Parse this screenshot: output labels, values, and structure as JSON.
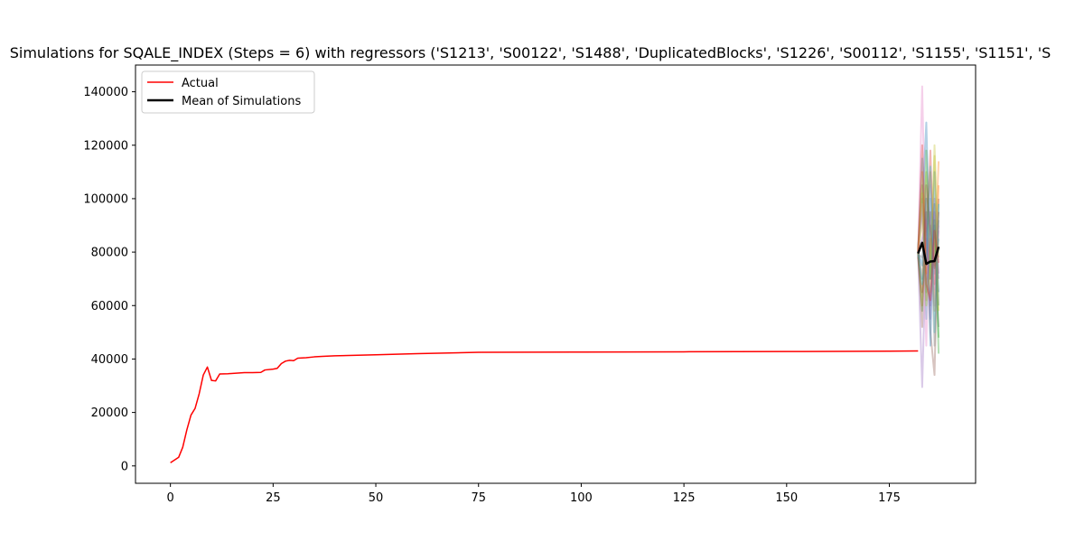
{
  "chart_data": {
    "type": "line",
    "title": "Simulations for SQALE_INDEX (Steps = 6) with regressors ('S1213', 'S00122', 'S1488', 'DuplicatedBlocks', 'S1226', 'S00112', 'S1155', 'S1151', 'S",
    "xlabel": "",
    "ylabel": "",
    "xlim": [
      -8.5,
      196
    ],
    "ylim": [
      -6500,
      150000
    ],
    "x_ticks": [
      0,
      25,
      50,
      75,
      100,
      125,
      150,
      175
    ],
    "y_ticks": [
      0,
      20000,
      40000,
      60000,
      80000,
      100000,
      120000,
      140000
    ],
    "grid": false,
    "legend": {
      "placement": "upper-left",
      "entries": [
        {
          "label": "Actual",
          "color": "#ff0000"
        },
        {
          "label": "Mean of Simulations",
          "color": "#000000"
        }
      ]
    },
    "actual": {
      "name": "Actual",
      "color": "#ff0000",
      "x": [
        0,
        1,
        2,
        3,
        4,
        5,
        6,
        7,
        8,
        9,
        10,
        11,
        12,
        14,
        16,
        18,
        20,
        22,
        23,
        25,
        26,
        27,
        28,
        29,
        30,
        31,
        33,
        35,
        37,
        40,
        50,
        60,
        75,
        100,
        125,
        150,
        175,
        182
      ],
      "y": [
        1200,
        2200,
        3200,
        7000,
        13500,
        19000,
        21500,
        27000,
        34000,
        37000,
        32000,
        31800,
        34400,
        34500,
        34700,
        34900,
        34900,
        35000,
        35900,
        36200,
        36500,
        38300,
        39200,
        39500,
        39400,
        40300,
        40500,
        40800,
        41000,
        41200,
        41600,
        42000,
        42500,
        42600,
        42700,
        42800,
        42950,
        43000
      ]
    },
    "mean_of_simulations": {
      "name": "Mean of Simulations",
      "color": "#000000",
      "x": [
        182,
        183,
        184,
        185,
        186,
        187
      ],
      "y": [
        79500,
        83500,
        75600,
        76500,
        76600,
        82000
      ]
    },
    "simulations": [
      {
        "color": "#e377c2",
        "values": [
          80000,
          142000,
          70000,
          95000,
          60000,
          88000
        ]
      },
      {
        "color": "#1f77b4",
        "values": [
          82000,
          95000,
          128500,
          70000,
          90000,
          65000
        ]
      },
      {
        "color": "#ff7f0e",
        "values": [
          78000,
          60000,
          90000,
          110000,
          75000,
          114000
        ]
      },
      {
        "color": "#2ca02c",
        "values": [
          81000,
          105000,
          65000,
          80000,
          98000,
          42000
        ]
      },
      {
        "color": "#9467bd",
        "values": [
          79000,
          29500,
          85000,
          60000,
          95000,
          70000
        ]
      },
      {
        "color": "#8c564b",
        "values": [
          80500,
          70000,
          95000,
          50000,
          34000,
          100000
        ]
      },
      {
        "color": "#17becf",
        "values": [
          79500,
          115000,
          55000,
          100000,
          72000,
          85000
        ]
      },
      {
        "color": "#bcbd22",
        "values": [
          80000,
          90000,
          110000,
          65000,
          120000,
          78000
        ]
      },
      {
        "color": "#d62728",
        "values": [
          78500,
          65000,
          80000,
          118000,
          68000,
          95000
        ]
      },
      {
        "color": "#7f7f7f",
        "values": [
          81500,
          100000,
          62000,
          90000,
          82000,
          52000
        ]
      },
      {
        "color": "#1f77b4",
        "values": [
          80000,
          75000,
          100000,
          45000,
          110000,
          60000
        ]
      },
      {
        "color": "#ff7f0e",
        "values": [
          79000,
          110000,
          72000,
          85000,
          58000,
          105000
        ]
      },
      {
        "color": "#2ca02c",
        "values": [
          80200,
          58000,
          118000,
          70000,
          92000,
          48000
        ]
      },
      {
        "color": "#e377c2",
        "values": [
          79800,
          98000,
          45000,
          105000,
          66000,
          90000
        ]
      },
      {
        "color": "#9467bd",
        "values": [
          80600,
          85000,
          92000,
          55000,
          100000,
          72000
        ]
      },
      {
        "color": "#17becf",
        "values": [
          79200,
          68000,
          78000,
          112000,
          50000,
          98000
        ]
      },
      {
        "color": "#bcbd22",
        "values": [
          80400,
          102000,
          60000,
          76000,
          116000,
          58000
        ]
      },
      {
        "color": "#8c564b",
        "values": [
          79600,
          52000,
          105000,
          88000,
          74000,
          82000
        ]
      },
      {
        "color": "#d62728",
        "values": [
          80100,
          120000,
          68000,
          62000,
          88000,
          76000
        ]
      },
      {
        "color": "#7f7f7f",
        "values": [
          79300,
          78000,
          88000,
          95000,
          45000,
          92000
        ]
      }
    ],
    "simulation_x": [
      182,
      183,
      184,
      185,
      186,
      187
    ]
  }
}
